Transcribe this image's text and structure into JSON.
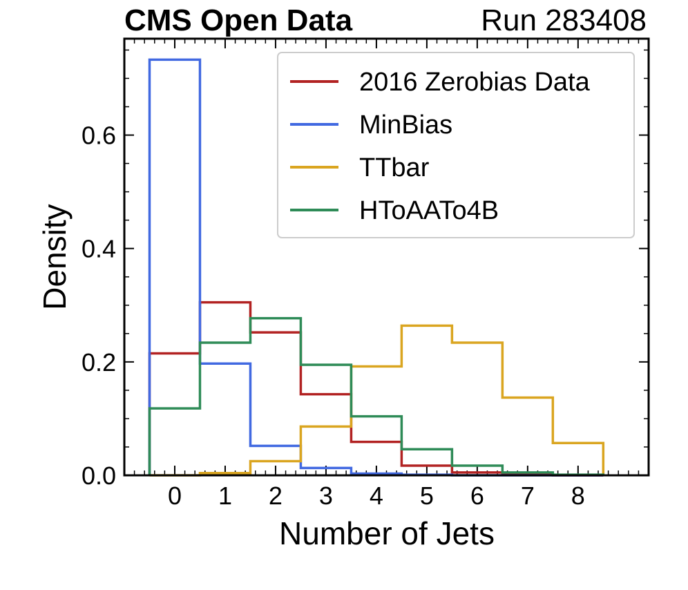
{
  "chart_data": {
    "type": "histogram",
    "title_left": "CMS Open Data",
    "title_right": "Run 283408",
    "xlabel": "Number of Jets",
    "ylabel": "Density",
    "xlim": [
      -1,
      9.4
    ],
    "ylim": [
      0,
      0.77
    ],
    "bin_edges": [
      -0.5,
      0.5,
      1.5,
      2.5,
      3.5,
      4.5,
      5.5,
      6.5,
      7.5,
      8.5
    ],
    "x_ticks": [
      0,
      1,
      2,
      3,
      4,
      5,
      6,
      7,
      8
    ],
    "x_tick_labels": [
      "0",
      "1",
      "2",
      "3",
      "4",
      "5",
      "6",
      "7",
      "8"
    ],
    "y_ticks": [
      0.0,
      0.2,
      0.4,
      0.6
    ],
    "y_tick_labels": [
      "0.0",
      "0.2",
      "0.4",
      "0.6"
    ],
    "legend_position": "upper-right",
    "series": [
      {
        "name": "2016 Zerobias Data",
        "color": "#b22222",
        "values": [
          0.215,
          0.305,
          0.252,
          0.143,
          0.059,
          0.017,
          0.005,
          0.002,
          0.0
        ]
      },
      {
        "name": "MinBias",
        "color": "#4169e1",
        "values": [
          0.733,
          0.197,
          0.052,
          0.013,
          0.003,
          0.001,
          0.0,
          0.0,
          0.0
        ]
      },
      {
        "name": "TTbar",
        "color": "#daa520",
        "values": [
          0.0,
          0.004,
          0.025,
          0.086,
          0.192,
          0.264,
          0.234,
          0.137,
          0.057
        ]
      },
      {
        "name": "HToAATo4B",
        "color": "#2e8b57",
        "values": [
          0.118,
          0.234,
          0.277,
          0.195,
          0.104,
          0.046,
          0.017,
          0.005,
          0.001
        ]
      }
    ]
  }
}
